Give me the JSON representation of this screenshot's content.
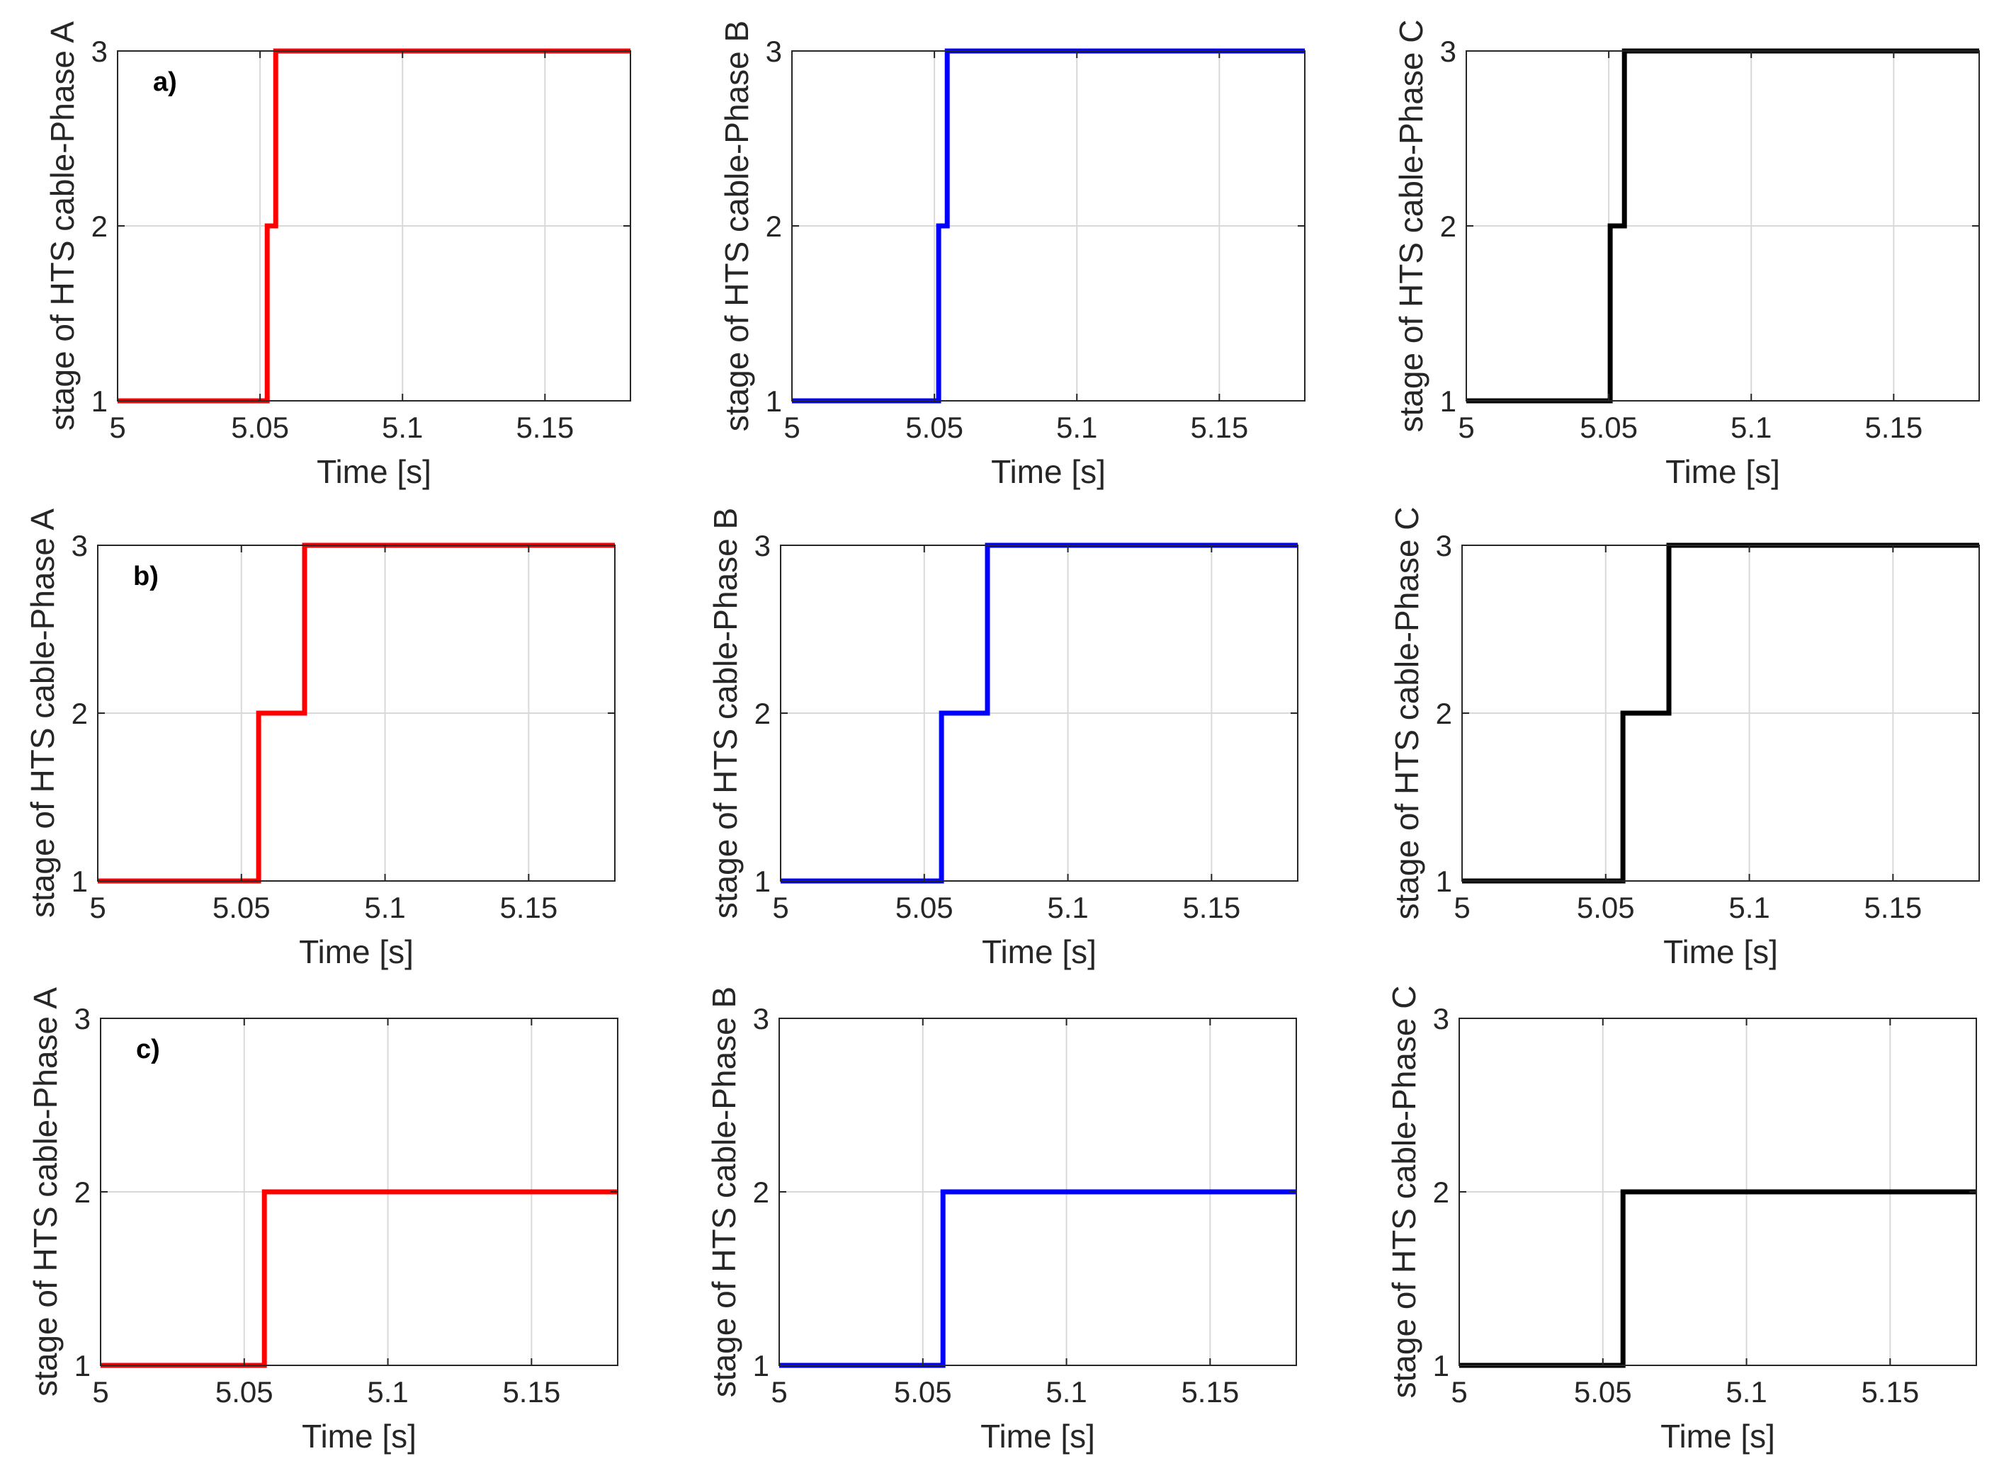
{
  "figure": {
    "background": "#ffffff",
    "grid_color": "#d9d9d9",
    "axis_color": "#262626"
  },
  "chart_data": [
    {
      "type": "line",
      "step": true,
      "row": "a",
      "panel_label": "a)",
      "xlabel": "Time [s]",
      "ylabel": "stage of HTS cable-Phase A",
      "color": "#ff0000",
      "x": [
        5.0,
        5.0525,
        5.0525,
        5.0555,
        5.0555,
        5.18
      ],
      "y": [
        1,
        1,
        2,
        2,
        3,
        3
      ],
      "xlim": [
        5.0,
        5.18
      ],
      "ylim": [
        1,
        3
      ],
      "xticks": [
        5,
        5.05,
        5.1,
        5.15
      ],
      "xtick_labels": [
        "5",
        "5.05",
        "5.1",
        "5.15"
      ],
      "yticks": [
        1,
        2,
        3
      ],
      "ytick_labels": [
        "1",
        "2",
        "3"
      ],
      "grid": true
    },
    {
      "type": "line",
      "step": true,
      "row": "a",
      "panel_label": "",
      "xlabel": "Time [s]",
      "ylabel": "stage of HTS cable-Phase B",
      "color": "#0000ff",
      "x": [
        5.0,
        5.0515,
        5.0515,
        5.0545,
        5.0545,
        5.18
      ],
      "y": [
        1,
        1,
        2,
        2,
        3,
        3
      ],
      "xlim": [
        5.0,
        5.18
      ],
      "ylim": [
        1,
        3
      ],
      "xticks": [
        5,
        5.05,
        5.1,
        5.15
      ],
      "xtick_labels": [
        "5",
        "5.05",
        "5.1",
        "5.15"
      ],
      "yticks": [
        1,
        2,
        3
      ],
      "ytick_labels": [
        "1",
        "2",
        "3"
      ],
      "grid": true
    },
    {
      "type": "line",
      "step": true,
      "row": "a",
      "panel_label": "",
      "xlabel": "Time [s]",
      "ylabel": "stage of HTS cable-Phase C",
      "color": "#000000",
      "x": [
        5.0,
        5.0505,
        5.0505,
        5.0555,
        5.0555,
        5.18
      ],
      "y": [
        1,
        1,
        2,
        2,
        3,
        3
      ],
      "xlim": [
        5.0,
        5.18
      ],
      "ylim": [
        1,
        3
      ],
      "xticks": [
        5,
        5.05,
        5.1,
        5.15
      ],
      "xtick_labels": [
        "5",
        "5.05",
        "5.1",
        "5.15"
      ],
      "yticks": [
        1,
        2,
        3
      ],
      "ytick_labels": [
        "1",
        "2",
        "3"
      ],
      "grid": true
    },
    {
      "type": "line",
      "step": true,
      "row": "b",
      "panel_label": "b)",
      "xlabel": "Time [s]",
      "ylabel": "stage of HTS cable-Phase A",
      "color": "#ff0000",
      "x": [
        5.0,
        5.056,
        5.056,
        5.072,
        5.072,
        5.18
      ],
      "y": [
        1,
        1,
        2,
        2,
        3,
        3
      ],
      "xlim": [
        5.0,
        5.18
      ],
      "ylim": [
        1,
        3
      ],
      "xticks": [
        5,
        5.05,
        5.1,
        5.15
      ],
      "xtick_labels": [
        "5",
        "5.05",
        "5.1",
        "5.15"
      ],
      "yticks": [
        1,
        2,
        3
      ],
      "ytick_labels": [
        "1",
        "2",
        "3"
      ],
      "grid": true
    },
    {
      "type": "line",
      "step": true,
      "row": "b",
      "panel_label": "",
      "xlabel": "Time [s]",
      "ylabel": "stage of HTS cable-Phase B",
      "color": "#0000ff",
      "x": [
        5.0,
        5.056,
        5.056,
        5.072,
        5.072,
        5.18
      ],
      "y": [
        1,
        1,
        2,
        2,
        3,
        3
      ],
      "xlim": [
        5.0,
        5.18
      ],
      "ylim": [
        1,
        3
      ],
      "xticks": [
        5,
        5.05,
        5.1,
        5.15
      ],
      "xtick_labels": [
        "5",
        "5.05",
        "5.1",
        "5.15"
      ],
      "yticks": [
        1,
        2,
        3
      ],
      "ytick_labels": [
        "1",
        "2",
        "3"
      ],
      "grid": true
    },
    {
      "type": "line",
      "step": true,
      "row": "b",
      "panel_label": "",
      "xlabel": "Time [s]",
      "ylabel": "stage of HTS cable-Phase C",
      "color": "#000000",
      "x": [
        5.0,
        5.056,
        5.056,
        5.072,
        5.072,
        5.18
      ],
      "y": [
        1,
        1,
        2,
        2,
        3,
        3
      ],
      "xlim": [
        5.0,
        5.18
      ],
      "ylim": [
        1,
        3
      ],
      "xticks": [
        5,
        5.05,
        5.1,
        5.15
      ],
      "xtick_labels": [
        "5",
        "5.05",
        "5.1",
        "5.15"
      ],
      "yticks": [
        1,
        2,
        3
      ],
      "ytick_labels": [
        "1",
        "2",
        "3"
      ],
      "grid": true
    },
    {
      "type": "line",
      "step": true,
      "row": "c",
      "panel_label": "c)",
      "xlabel": "Time [s]",
      "ylabel": "stage of HTS cable-Phase A",
      "color": "#ff0000",
      "x": [
        5.0,
        5.057,
        5.057,
        5.18
      ],
      "y": [
        1,
        1,
        2,
        2
      ],
      "xlim": [
        5.0,
        5.18
      ],
      "ylim": [
        1,
        3
      ],
      "xticks": [
        5,
        5.05,
        5.1,
        5.15
      ],
      "xtick_labels": [
        "5",
        "5.05",
        "5.1",
        "5.15"
      ],
      "yticks": [
        1,
        2,
        3
      ],
      "ytick_labels": [
        "1",
        "2",
        "3"
      ],
      "grid": true
    },
    {
      "type": "line",
      "step": true,
      "row": "c",
      "panel_label": "",
      "xlabel": "Time [s]",
      "ylabel": "stage of HTS cable-Phase B",
      "color": "#0000ff",
      "x": [
        5.0,
        5.057,
        5.057,
        5.18
      ],
      "y": [
        1,
        1,
        2,
        2
      ],
      "xlim": [
        5.0,
        5.18
      ],
      "ylim": [
        1,
        3
      ],
      "xticks": [
        5,
        5.05,
        5.1,
        5.15
      ],
      "xtick_labels": [
        "5",
        "5.05",
        "5.1",
        "5.15"
      ],
      "yticks": [
        1,
        2,
        3
      ],
      "ytick_labels": [
        "1",
        "2",
        "3"
      ],
      "grid": true
    },
    {
      "type": "line",
      "step": true,
      "row": "c",
      "panel_label": "",
      "xlabel": "Time [s]",
      "ylabel": "stage of HTS cable-Phase C",
      "color": "#000000",
      "x": [
        5.0,
        5.057,
        5.057,
        5.18
      ],
      "y": [
        1,
        1,
        2,
        2
      ],
      "xlim": [
        5.0,
        5.18
      ],
      "ylim": [
        1,
        3
      ],
      "xticks": [
        5,
        5.05,
        5.1,
        5.15
      ],
      "xtick_labels": [
        "5",
        "5.05",
        "5.1",
        "5.15"
      ],
      "yticks": [
        1,
        2,
        3
      ],
      "ytick_labels": [
        "1",
        "2",
        "3"
      ],
      "grid": true
    }
  ]
}
